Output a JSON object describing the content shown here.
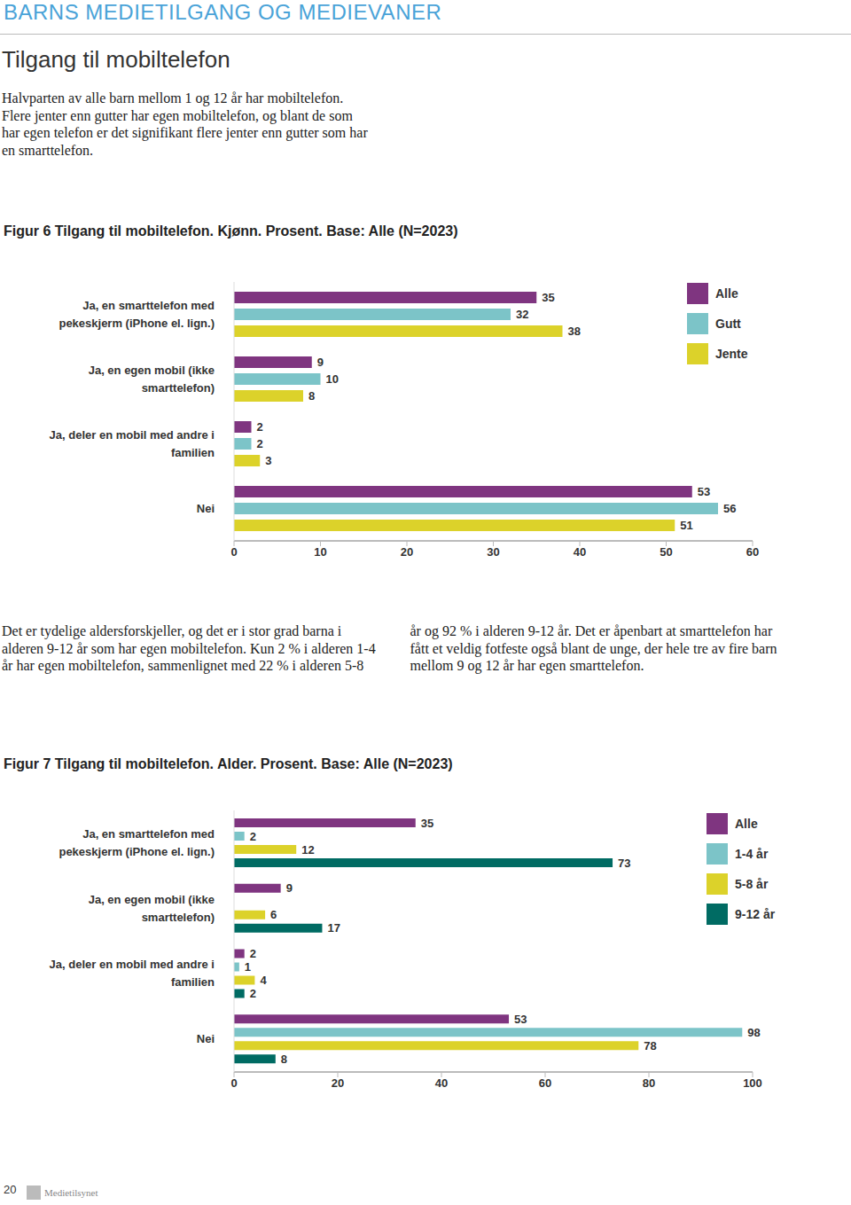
{
  "header": "BARNS MEDIETILGANG OG MEDIEVANER",
  "section_title": "Tilgang til mobiltelefon",
  "intro": "Halvparten av alle barn mellom 1 og 12 år har mobiltelefon. Flere jenter enn gutter har egen mobiltelefon, og blant de som har egen telefon er det signifikant flere jenter enn gutter som har en smarttelefon.",
  "body_text": "Det er tydelige aldersforskjeller, og det er i stor grad barna i alderen 9-12 år som har egen mobiltelefon. Kun 2 % i alderen 1-4 år har egen mobiltelefon, sammenlignet med 22 % i alderen 5-8 år og 92 % i alderen 9-12 år. Det er åpenbart at smarttelefon har fått et veldig fotfeste også blant de unge, der hele tre av fire barn mellom 9 og 12 år har egen smarttelefon.",
  "footer": {
    "page_number": "20",
    "publisher": "Medietilsynet"
  },
  "chart_data": [
    {
      "type": "bar",
      "orientation": "horizontal",
      "title": "Figur 6 Tilgang til mobiltelefon. Kjønn. Prosent. Base: Alle (N=2023)",
      "categories": [
        "Ja, en smarttelefon med pekeskjerm (iPhone el. lign.)",
        "Ja, en egen mobil (ikke smarttelefon)",
        "Ja, deler en mobil med andre i familien",
        "Nei"
      ],
      "series": [
        {
          "name": "Alle",
          "color": "#7f3580",
          "values": [
            35,
            9,
            2,
            53
          ]
        },
        {
          "name": "Gutt",
          "color": "#7cc4c8",
          "values": [
            32,
            10,
            2,
            56
          ]
        },
        {
          "name": "Jente",
          "color": "#dcd22a",
          "values": [
            38,
            8,
            3,
            51
          ]
        }
      ],
      "xlim": [
        0,
        60
      ],
      "xticks": [
        0,
        10,
        20,
        30,
        40,
        50,
        60
      ],
      "grid": false,
      "legend": "right",
      "data_labels": true
    },
    {
      "type": "bar",
      "orientation": "horizontal",
      "title": "Figur 7 Tilgang til mobiltelefon. Alder. Prosent. Base: Alle (N=2023)",
      "categories": [
        "Ja, en smarttelefon med pekeskjerm (iPhone el. lign.)",
        "Ja, en egen mobil (ikke smarttelefon)",
        "Ja, deler en mobil med andre i familien",
        "Nei"
      ],
      "series": [
        {
          "name": "Alle",
          "color": "#7f3580",
          "values": [
            35,
            9,
            2,
            53
          ]
        },
        {
          "name": "1-4 år",
          "color": "#7cc4c8",
          "values": [
            2,
            0,
            1,
            98
          ]
        },
        {
          "name": "5-8 år",
          "color": "#dcd22a",
          "values": [
            12,
            6,
            4,
            78
          ]
        },
        {
          "name": "9-12 år",
          "color": "#006b63",
          "values": [
            73,
            17,
            2,
            8
          ]
        }
      ],
      "xlim": [
        0,
        100
      ],
      "xticks": [
        0,
        20,
        40,
        60,
        80,
        100
      ],
      "grid": false,
      "legend": "right",
      "data_labels": true
    }
  ]
}
